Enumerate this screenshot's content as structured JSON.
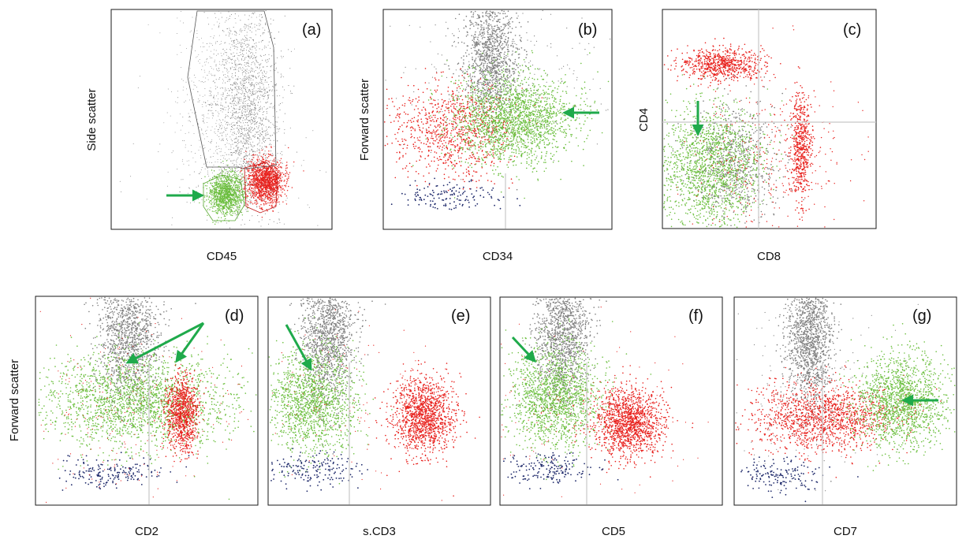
{
  "colors": {
    "gray": "#7f7f7f",
    "red": "#e8211d",
    "green": "#6cbf3f",
    "navy": "#1f2a6b",
    "arrow": "#1faa4b",
    "gate_gray": "#555555",
    "gate_green": "#5aa832",
    "quadrant_line": "#c8c8c8"
  },
  "chart_data": [
    {
      "id": "a",
      "type": "scatter",
      "panel_label": "(a)",
      "xlabel": "CD45",
      "ylabel": "Side scatter",
      "log_x": true,
      "log_y": false,
      "grid": false,
      "gates": [
        "lymphocyte-polygon-gate",
        "blast-polygon-gate",
        "large-cell-polygon-gate"
      ],
      "arrows": [
        {
          "pointing": "left-to-right",
          "target": "green gate"
        }
      ],
      "series": [
        {
          "color": "gray",
          "cluster": "diffuse granular population, high side scatter"
        },
        {
          "color": "red",
          "cluster": "bright CD45, low side scatter"
        },
        {
          "color": "green",
          "cluster": "dim CD45, low side scatter"
        }
      ]
    },
    {
      "id": "b",
      "type": "scatter",
      "panel_label": "(b)",
      "xlabel": "CD34",
      "ylabel": "Forward scatter",
      "log_x": true,
      "log_y": false,
      "grid": false,
      "arrows": [
        {
          "pointing": "right-to-left",
          "target": "green cluster"
        }
      ],
      "series": [
        {
          "color": "gray",
          "cluster": "upper vertical band"
        },
        {
          "color": "red",
          "cluster": "CD34 negative"
        },
        {
          "color": "green",
          "cluster": "CD34 positive"
        },
        {
          "color": "navy",
          "cluster": "low forward scatter debris"
        }
      ]
    },
    {
      "id": "c",
      "type": "scatter",
      "panel_label": "(c)",
      "xlabel": "CD8",
      "ylabel": "CD4",
      "log_x": true,
      "log_y": true,
      "grid": false,
      "quadrants": true,
      "arrows": [
        {
          "pointing": "top-to-bottom",
          "target": "green cluster"
        }
      ],
      "series": [
        {
          "color": "red",
          "cluster": "CD4+ CD8- and CD4- CD8+"
        },
        {
          "color": "green",
          "cluster": "CD4- CD8-"
        },
        {
          "color": "gray",
          "cluster": "CD4- CD8 dim"
        }
      ]
    },
    {
      "id": "d",
      "type": "scatter",
      "panel_label": "(d)",
      "xlabel": "CD2",
      "ylabel": "Forward scatter",
      "log_x": true,
      "log_y": false,
      "grid": false,
      "arrows": [
        {
          "pointing": "upper-right-to-lower-left",
          "target": "green cluster"
        },
        {
          "pointing": "upper-right-to-lower-left",
          "target": "green cluster"
        }
      ],
      "series": [
        {
          "color": "gray"
        },
        {
          "color": "green"
        },
        {
          "color": "red"
        },
        {
          "color": "navy"
        }
      ]
    },
    {
      "id": "e",
      "type": "scatter",
      "panel_label": "(e)",
      "xlabel": "s.CD3",
      "ylabel": "",
      "log_x": true,
      "log_y": false,
      "grid": false,
      "arrows": [
        {
          "pointing": "upper-left-to-lower-right",
          "target": "green cluster"
        }
      ],
      "series": [
        {
          "color": "gray"
        },
        {
          "color": "green"
        },
        {
          "color": "red"
        },
        {
          "color": "navy"
        }
      ]
    },
    {
      "id": "f",
      "type": "scatter",
      "panel_label": "(f)",
      "xlabel": "CD5",
      "ylabel": "",
      "log_x": true,
      "log_y": false,
      "grid": false,
      "arrows": [
        {
          "pointing": "upper-left-to-lower-right",
          "target": "green cluster"
        }
      ],
      "series": [
        {
          "color": "gray"
        },
        {
          "color": "green"
        },
        {
          "color": "red"
        },
        {
          "color": "navy"
        }
      ]
    },
    {
      "id": "g",
      "type": "scatter",
      "panel_label": "(g)",
      "xlabel": "CD7",
      "ylabel": "",
      "log_x": true,
      "log_y": false,
      "grid": false,
      "arrows": [
        {
          "pointing": "right-to-left",
          "target": "green cluster"
        }
      ],
      "series": [
        {
          "color": "gray"
        },
        {
          "color": "red"
        },
        {
          "color": "green"
        },
        {
          "color": "navy"
        }
      ]
    }
  ]
}
